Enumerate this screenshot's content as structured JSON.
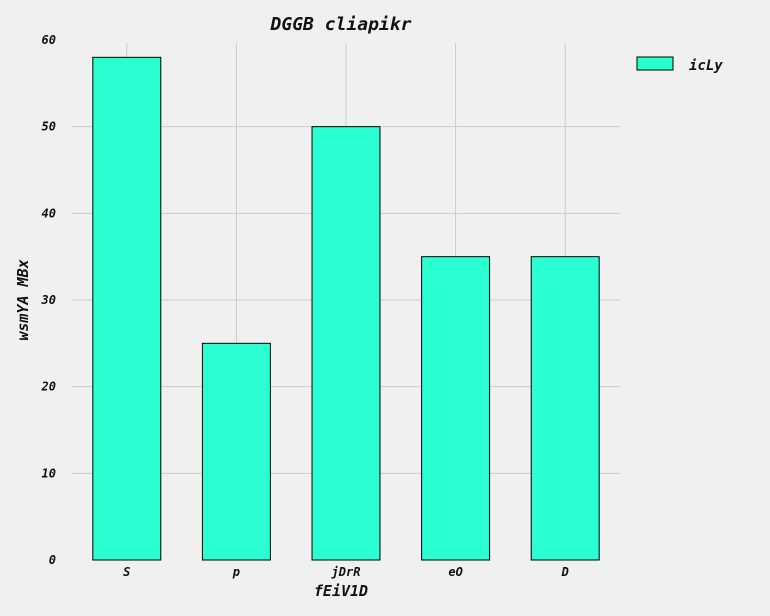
{
  "chart_data": {
    "type": "bar",
    "title": "DGGB cliapikr",
    "xlabel": "fEiV1D",
    "ylabel": "wsmYA MBx",
    "categories": [
      "S",
      "p",
      "jDrR",
      "eO",
      "D"
    ],
    "series": [
      {
        "name": "icLy",
        "values": [
          58,
          25,
          50,
          35,
          35
        ],
        "color": "#2affd2"
      }
    ],
    "ylim": [
      0,
      60
    ],
    "yticks": [
      0,
      10,
      20,
      30,
      40,
      50,
      60
    ],
    "grid": true,
    "legend": "top-right",
    "colors": {
      "background": "#f0f0f0",
      "grid": "#cbcbcb",
      "bar_edge": "#000000"
    }
  }
}
